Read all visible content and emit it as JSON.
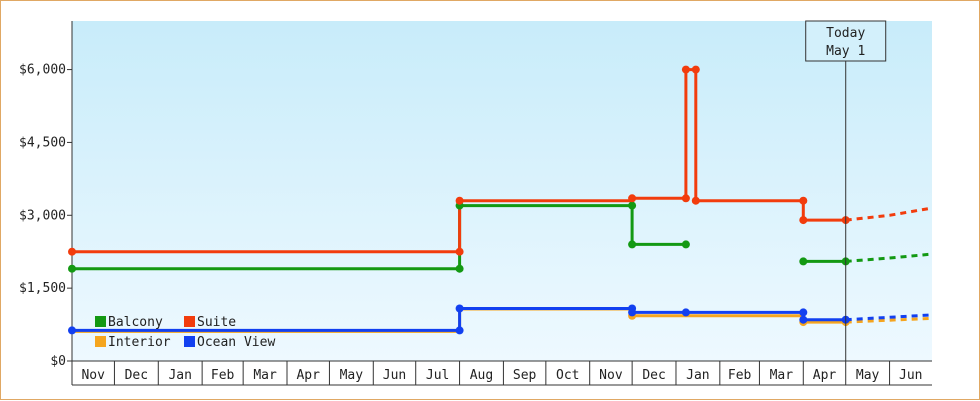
{
  "chart_data": {
    "type": "line",
    "title": "",
    "xlabel": "",
    "ylabel": "",
    "step": true,
    "x_range": [
      "2023-11-01",
      "2025-07-01"
    ],
    "ylim": [
      0,
      7000
    ],
    "y_ticks": [
      0,
      1500,
      3000,
      4500,
      6000
    ],
    "y_tick_labels": [
      "$0",
      "$1,500",
      "$3,000",
      "$4,500",
      "$6,000"
    ],
    "x_tick_labels": [
      "Nov",
      "Dec",
      "Jan",
      "Feb",
      "Mar",
      "Apr",
      "May",
      "Jun",
      "Jul",
      "Aug",
      "Sep",
      "Oct",
      "Nov",
      "Dec",
      "Jan",
      "Feb",
      "Mar",
      "Apr",
      "May",
      "Jun"
    ],
    "background_gradient": [
      "#c8ecfa",
      "#eef9ff"
    ],
    "grid": false,
    "legend_position": "bottom-left",
    "today_marker": {
      "date": "2025-05-01",
      "line1": "Today",
      "line2": "May 1"
    },
    "series": [
      {
        "name": "Balcony",
        "color": "#139913",
        "points": [
          [
            "2023-11-01",
            1900
          ],
          [
            "2024-08-01",
            1900
          ],
          [
            "2024-08-01",
            3200
          ],
          [
            "2024-12-01",
            3200
          ],
          [
            "2024-12-01",
            2400
          ],
          [
            "2025-01-08",
            2400
          ],
          null,
          [
            "2025-04-01",
            2050
          ],
          [
            "2025-05-01",
            2050
          ]
        ],
        "markers": [
          [
            "2023-11-01",
            1900
          ],
          [
            "2024-08-01",
            1900
          ],
          [
            "2024-08-01",
            3200
          ],
          [
            "2024-12-01",
            3200
          ],
          [
            "2024-12-01",
            2400
          ],
          [
            "2025-01-08",
            2400
          ],
          [
            "2025-04-01",
            2050
          ],
          [
            "2025-05-01",
            2050
          ]
        ],
        "forecast": [
          [
            "2025-05-01",
            2050
          ],
          [
            "2025-06-01",
            2120
          ],
          [
            "2025-07-01",
            2200
          ]
        ]
      },
      {
        "name": "Suite",
        "color": "#f23c0d",
        "points": [
          [
            "2023-11-01",
            2250
          ],
          [
            "2024-08-01",
            2250
          ],
          [
            "2024-08-01",
            3300
          ],
          [
            "2024-12-01",
            3300
          ],
          [
            "2024-12-01",
            3350
          ],
          [
            "2025-01-08",
            3350
          ],
          [
            "2025-01-08",
            6000
          ],
          [
            "2025-01-15",
            6000
          ],
          [
            "2025-01-15",
            3300
          ],
          [
            "2025-04-01",
            3300
          ],
          [
            "2025-04-01",
            2900
          ],
          [
            "2025-05-01",
            2900
          ]
        ],
        "markers": [
          [
            "2023-11-01",
            2250
          ],
          [
            "2024-08-01",
            2250
          ],
          [
            "2024-08-01",
            3300
          ],
          [
            "2024-12-01",
            3350
          ],
          [
            "2025-01-08",
            3350
          ],
          [
            "2025-01-08",
            6000
          ],
          [
            "2025-01-15",
            6000
          ],
          [
            "2025-01-15",
            3300
          ],
          [
            "2025-04-01",
            3300
          ],
          [
            "2025-04-01",
            2900
          ],
          [
            "2025-05-01",
            2900
          ]
        ],
        "forecast": [
          [
            "2025-05-01",
            2900
          ],
          [
            "2025-06-01",
            3000
          ],
          [
            "2025-07-01",
            3150
          ]
        ]
      },
      {
        "name": "Interior",
        "color": "#f5a51f",
        "points": [
          [
            "2023-11-01",
            610
          ],
          [
            "2024-08-01",
            610
          ],
          [
            "2024-08-01",
            1070
          ],
          [
            "2024-12-01",
            1070
          ],
          [
            "2024-12-01",
            930
          ],
          [
            "2025-04-01",
            930
          ],
          [
            "2025-04-01",
            800
          ],
          [
            "2025-05-01",
            800
          ]
        ],
        "markers": [
          [
            "2024-12-01",
            930
          ],
          [
            "2025-04-01",
            800
          ],
          [
            "2025-05-01",
            800
          ]
        ],
        "forecast": [
          [
            "2025-05-01",
            800
          ],
          [
            "2025-06-01",
            840
          ],
          [
            "2025-07-01",
            880
          ]
        ]
      },
      {
        "name": "Ocean View",
        "color": "#1240f0",
        "points": [
          [
            "2023-11-01",
            630
          ],
          [
            "2024-08-01",
            630
          ],
          [
            "2024-08-01",
            1080
          ],
          [
            "2024-12-01",
            1080
          ],
          [
            "2024-12-01",
            1000
          ],
          [
            "2025-04-01",
            1000
          ],
          [
            "2025-04-01",
            850
          ],
          [
            "2025-05-01",
            850
          ]
        ],
        "markers": [
          [
            "2023-11-01",
            630
          ],
          [
            "2024-08-01",
            630
          ],
          [
            "2024-08-01",
            1080
          ],
          [
            "2024-12-01",
            1080
          ],
          [
            "2024-12-01",
            1000
          ],
          [
            "2025-01-08",
            1000
          ],
          [
            "2025-04-01",
            1000
          ],
          [
            "2025-04-01",
            850
          ],
          [
            "2025-05-01",
            850
          ]
        ],
        "forecast": [
          [
            "2025-05-01",
            850
          ],
          [
            "2025-06-01",
            900
          ],
          [
            "2025-07-01",
            950
          ]
        ]
      }
    ],
    "legend": [
      {
        "series": "Balcony",
        "color": "#139913"
      },
      {
        "series": "Suite",
        "color": "#f23c0d"
      },
      {
        "series": "Interior",
        "color": "#f5a51f"
      },
      {
        "series": "Ocean View",
        "color": "#1240f0"
      }
    ]
  }
}
